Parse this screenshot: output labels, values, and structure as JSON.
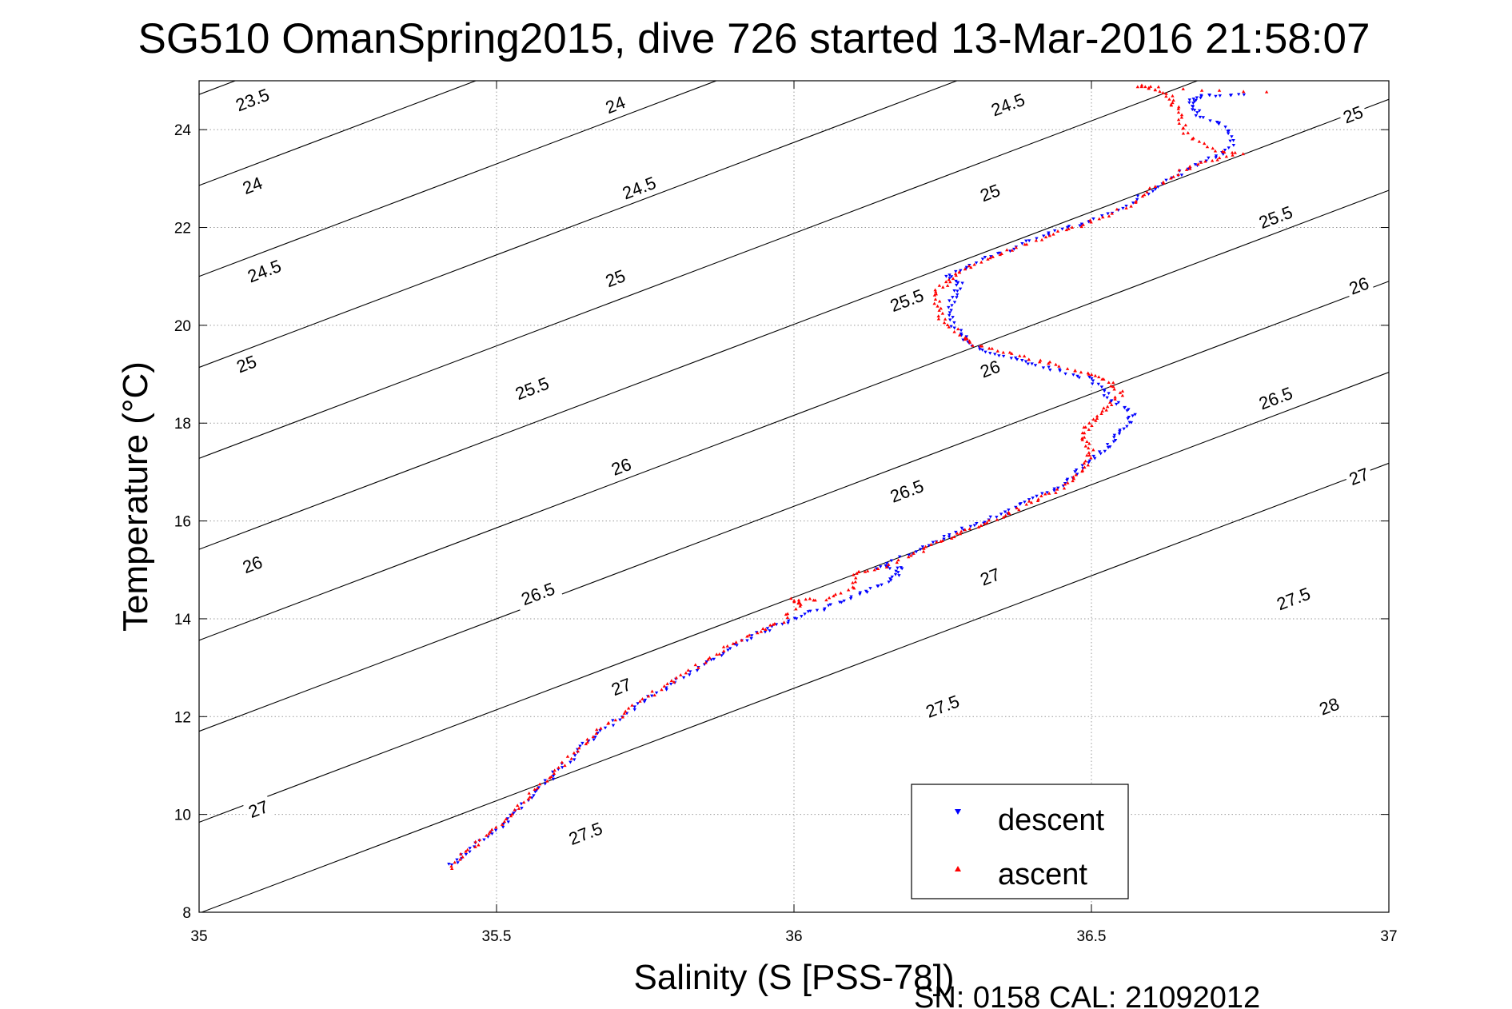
{
  "chart_data": {
    "type": "scatter",
    "title": "SG510 OmanSpring2015, dive 726 started 13-Mar-2016 21:58:07",
    "xlabel": "Salinity (S [PSS-78])",
    "ylabel": "Temperature (°C)",
    "xlim": [
      35,
      37
    ],
    "ylim": [
      8,
      25
    ],
    "xticks": [
      35,
      35.5,
      36,
      36.5,
      37
    ],
    "xtick_labels": [
      "35",
      "35.5",
      "36",
      "36.5",
      "37"
    ],
    "yticks": [
      8,
      10,
      12,
      14,
      16,
      18,
      20,
      22,
      24
    ],
    "ytick_labels": [
      "8",
      "10",
      "12",
      "14",
      "16",
      "18",
      "20",
      "22",
      "24"
    ],
    "grid": true,
    "legend_position": "bottom-right",
    "density_contours": {
      "levels": [
        23.5,
        24,
        24.5,
        25,
        25.5,
        26,
        26.5,
        27,
        27.5,
        28
      ],
      "labels": [
        {
          "text": "23.5",
          "x": 35.09,
          "y": 24.6
        },
        {
          "text": "24",
          "x": 35.09,
          "y": 22.85
        },
        {
          "text": "24.5",
          "x": 35.11,
          "y": 21.1
        },
        {
          "text": "25",
          "x": 35.08,
          "y": 19.2
        },
        {
          "text": "26",
          "x": 35.09,
          "y": 15.1
        },
        {
          "text": "27",
          "x": 35.1,
          "y": 10.1
        },
        {
          "text": "24",
          "x": 35.7,
          "y": 24.5
        },
        {
          "text": "24.5",
          "x": 35.74,
          "y": 22.8
        },
        {
          "text": "25",
          "x": 35.7,
          "y": 20.95
        },
        {
          "text": "25.5",
          "x": 35.56,
          "y": 18.7
        },
        {
          "text": "26",
          "x": 35.71,
          "y": 17.1
        },
        {
          "text": "26.5",
          "x": 35.57,
          "y": 14.5
        },
        {
          "text": "27",
          "x": 35.71,
          "y": 12.6
        },
        {
          "text": "27.5",
          "x": 35.65,
          "y": 9.6
        },
        {
          "text": "24.5",
          "x": 36.36,
          "y": 24.5
        },
        {
          "text": "25",
          "x": 36.33,
          "y": 22.7
        },
        {
          "text": "25.5",
          "x": 36.19,
          "y": 20.5
        },
        {
          "text": "26",
          "x": 36.33,
          "y": 19.1
        },
        {
          "text": "26.5",
          "x": 36.19,
          "y": 16.6
        },
        {
          "text": "27",
          "x": 36.33,
          "y": 14.85
        },
        {
          "text": "27.5",
          "x": 36.25,
          "y": 12.2
        },
        {
          "text": "25",
          "x": 36.94,
          "y": 24.3
        },
        {
          "text": "25.5",
          "x": 36.81,
          "y": 22.2
        },
        {
          "text": "26",
          "x": 36.95,
          "y": 20.8
        },
        {
          "text": "26.5",
          "x": 36.81,
          "y": 18.5
        },
        {
          "text": "27",
          "x": 36.95,
          "y": 16.9
        },
        {
          "text": "27.5",
          "x": 36.84,
          "y": 14.4
        },
        {
          "text": "28",
          "x": 36.9,
          "y": 12.2
        }
      ]
    },
    "series": [
      {
        "name": "descent",
        "color": "#0000ff",
        "marker": "triangle-down",
        "points": [
          [
            35.42,
            8.95
          ],
          [
            35.45,
            9.2
          ],
          [
            35.48,
            9.5
          ],
          [
            35.51,
            9.8
          ],
          [
            35.54,
            10.15
          ],
          [
            35.57,
            10.5
          ],
          [
            35.6,
            10.85
          ],
          [
            35.63,
            11.2
          ],
          [
            35.66,
            11.55
          ],
          [
            35.7,
            11.9
          ],
          [
            35.74,
            12.25
          ],
          [
            35.78,
            12.55
          ],
          [
            35.82,
            12.85
          ],
          [
            35.86,
            13.15
          ],
          [
            35.9,
            13.45
          ],
          [
            35.94,
            13.7
          ],
          [
            35.98,
            13.9
          ],
          [
            36.02,
            14.1
          ],
          [
            36.06,
            14.25
          ],
          [
            36.1,
            14.45
          ],
          [
            36.14,
            14.65
          ],
          [
            36.17,
            14.85
          ],
          [
            36.18,
            15.05
          ],
          [
            36.14,
            15.05
          ],
          [
            36.2,
            15.35
          ],
          [
            36.24,
            15.6
          ],
          [
            36.28,
            15.8
          ],
          [
            36.32,
            16.0
          ],
          [
            36.36,
            16.2
          ],
          [
            36.4,
            16.45
          ],
          [
            36.44,
            16.65
          ],
          [
            36.47,
            16.9
          ],
          [
            36.49,
            17.2
          ],
          [
            36.52,
            17.45
          ],
          [
            36.54,
            17.7
          ],
          [
            36.56,
            17.95
          ],
          [
            36.57,
            18.2
          ],
          [
            36.54,
            18.4
          ],
          [
            36.52,
            18.65
          ],
          [
            36.5,
            18.9
          ],
          [
            36.45,
            19.05
          ],
          [
            36.4,
            19.2
          ],
          [
            36.36,
            19.35
          ],
          [
            36.32,
            19.5
          ],
          [
            36.29,
            19.7
          ],
          [
            36.27,
            20.0
          ],
          [
            36.26,
            20.3
          ],
          [
            36.27,
            20.6
          ],
          [
            36.28,
            20.85
          ],
          [
            36.26,
            21.0
          ],
          [
            36.3,
            21.25
          ],
          [
            36.35,
            21.5
          ],
          [
            36.4,
            21.75
          ],
          [
            36.45,
            21.95
          ],
          [
            36.5,
            22.15
          ],
          [
            36.55,
            22.4
          ],
          [
            36.6,
            22.75
          ],
          [
            36.64,
            23.05
          ],
          [
            36.68,
            23.3
          ],
          [
            36.72,
            23.5
          ],
          [
            36.74,
            23.8
          ],
          [
            36.72,
            24.1
          ],
          [
            36.68,
            24.3
          ],
          [
            36.67,
            24.5
          ],
          [
            36.67,
            24.65
          ],
          [
            36.7,
            24.7
          ],
          [
            36.76,
            24.7
          ]
        ]
      },
      {
        "name": "ascent",
        "color": "#ff0000",
        "marker": "triangle-up",
        "points": [
          [
            35.42,
            8.9
          ],
          [
            35.45,
            9.25
          ],
          [
            35.48,
            9.55
          ],
          [
            35.51,
            9.85
          ],
          [
            35.54,
            10.2
          ],
          [
            35.57,
            10.55
          ],
          [
            35.6,
            10.9
          ],
          [
            35.63,
            11.25
          ],
          [
            35.66,
            11.6
          ],
          [
            35.7,
            11.95
          ],
          [
            35.74,
            12.3
          ],
          [
            35.78,
            12.6
          ],
          [
            35.82,
            12.9
          ],
          [
            35.86,
            13.2
          ],
          [
            35.9,
            13.5
          ],
          [
            35.94,
            13.75
          ],
          [
            35.98,
            13.95
          ],
          [
            36.01,
            14.3
          ],
          [
            36.0,
            14.4
          ],
          [
            36.05,
            14.4
          ],
          [
            36.1,
            14.6
          ],
          [
            36.1,
            14.95
          ],
          [
            36.14,
            15.0
          ],
          [
            36.2,
            15.3
          ],
          [
            36.24,
            15.55
          ],
          [
            36.28,
            15.75
          ],
          [
            36.32,
            15.95
          ],
          [
            36.36,
            16.15
          ],
          [
            36.4,
            16.4
          ],
          [
            36.44,
            16.6
          ],
          [
            36.47,
            16.85
          ],
          [
            36.49,
            17.15
          ],
          [
            36.5,
            17.4
          ],
          [
            36.49,
            17.65
          ],
          [
            36.49,
            17.9
          ],
          [
            36.51,
            18.1
          ],
          [
            36.53,
            18.35
          ],
          [
            36.55,
            18.6
          ],
          [
            36.53,
            18.85
          ],
          [
            36.5,
            19.0
          ],
          [
            36.45,
            19.15
          ],
          [
            36.4,
            19.3
          ],
          [
            36.35,
            19.45
          ],
          [
            36.3,
            19.6
          ],
          [
            36.28,
            19.8
          ],
          [
            36.25,
            20.1
          ],
          [
            36.24,
            20.4
          ],
          [
            36.24,
            20.7
          ],
          [
            36.26,
            20.9
          ],
          [
            36.28,
            21.1
          ],
          [
            36.32,
            21.35
          ],
          [
            36.37,
            21.55
          ],
          [
            36.42,
            21.8
          ],
          [
            36.47,
            22.0
          ],
          [
            36.52,
            22.2
          ],
          [
            36.57,
            22.5
          ],
          [
            36.61,
            22.85
          ],
          [
            36.65,
            23.15
          ],
          [
            36.69,
            23.35
          ],
          [
            36.75,
            23.5
          ],
          [
            36.7,
            23.6
          ],
          [
            36.66,
            23.9
          ],
          [
            36.65,
            24.2
          ],
          [
            36.64,
            24.5
          ],
          [
            36.63,
            24.7
          ],
          [
            36.6,
            24.85
          ],
          [
            36.58,
            24.9
          ],
          [
            36.79,
            24.75
          ]
        ]
      }
    ]
  },
  "legend": {
    "descent_label": "descent",
    "ascent_label": "ascent"
  },
  "footer": {
    "serial": "SN: 0158  CAL: 21092012"
  }
}
